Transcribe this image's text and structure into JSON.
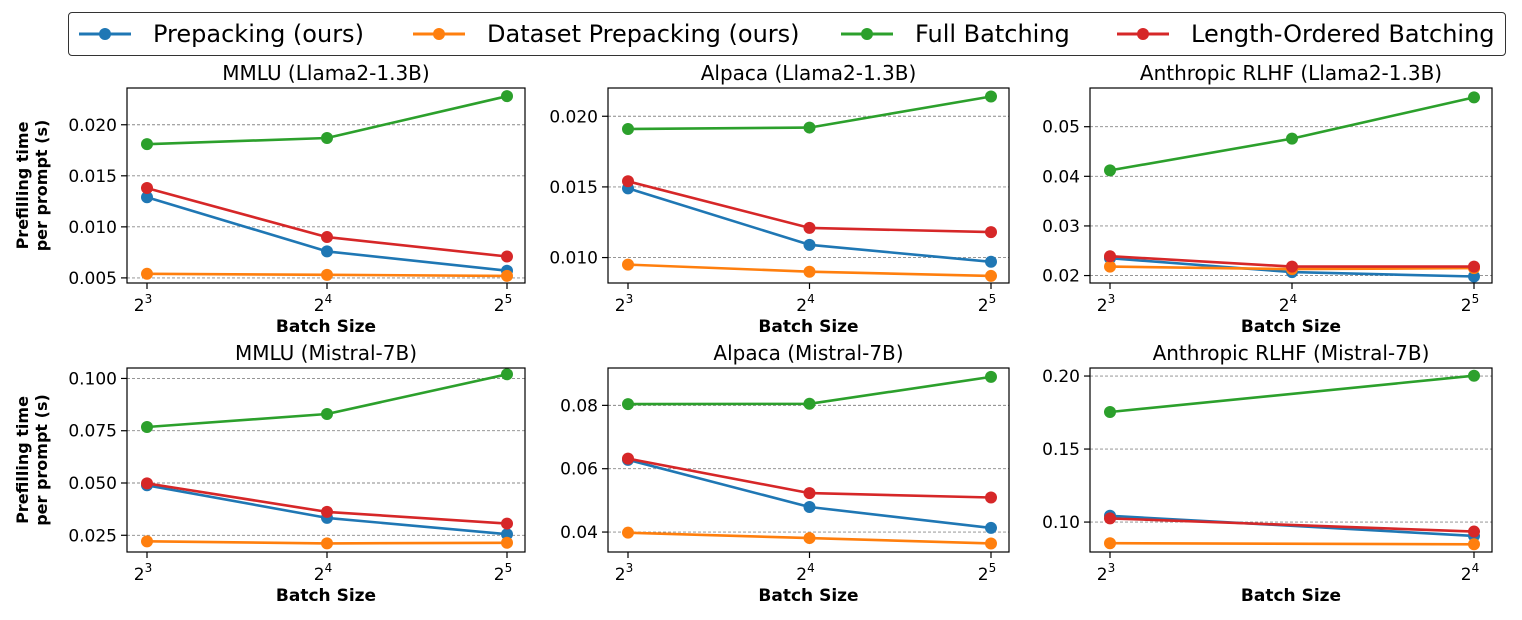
{
  "chart_data": {
    "type": "line",
    "legend": {
      "placement": "top",
      "entries": [
        {
          "label": "Prepacking (ours)",
          "color": "#1f77b4"
        },
        {
          "label": "Dataset Prepacking (ours)",
          "color": "#ff7f0e"
        },
        {
          "label": "Full Batching",
          "color": "#2ca02c"
        },
        {
          "label": "Length-Ordered Batching",
          "color": "#d62728"
        }
      ]
    },
    "ylabel_lines": [
      "Prefilling time",
      "per prompt (s)"
    ],
    "panels": [
      {
        "title": "MMLU (Llama2-1.3B)",
        "xlabel": "Batch Size",
        "x_exponents": [
          3,
          4,
          5
        ],
        "ylim": [
          0.0045,
          0.0236
        ],
        "yticks": [
          "0.005",
          "0.010",
          "0.015",
          "0.020"
        ],
        "ytick_values": [
          0.005,
          0.01,
          0.015,
          0.02
        ],
        "show_ylabel": true,
        "series": [
          {
            "name": "Prepacking (ours)",
            "values": [
              0.0129,
              0.0076,
              0.0057
            ]
          },
          {
            "name": "Dataset Prepacking (ours)",
            "values": [
              0.0054,
              0.0053,
              0.0052
            ]
          },
          {
            "name": "Full Batching",
            "values": [
              0.0181,
              0.0187,
              0.0228
            ]
          },
          {
            "name": "Length-Ordered Batching",
            "values": [
              0.0138,
              0.009,
              0.0071
            ]
          }
        ]
      },
      {
        "title": "Alpaca (Llama2-1.3B)",
        "xlabel": "Batch Size",
        "x_exponents": [
          3,
          4,
          5
        ],
        "ylim": [
          0.0082,
          0.022
        ],
        "yticks": [
          "0.010",
          "0.015",
          "0.020"
        ],
        "ytick_values": [
          0.01,
          0.015,
          0.02
        ],
        "show_ylabel": false,
        "series": [
          {
            "name": "Prepacking (ours)",
            "values": [
              0.0149,
              0.0109,
              0.0097
            ]
          },
          {
            "name": "Dataset Prepacking (ours)",
            "values": [
              0.0095,
              0.009,
              0.0087
            ]
          },
          {
            "name": "Full Batching",
            "values": [
              0.0191,
              0.0192,
              0.0214
            ]
          },
          {
            "name": "Length-Ordered Batching",
            "values": [
              0.0154,
              0.0121,
              0.0118
            ]
          }
        ]
      },
      {
        "title": "Anthropic RLHF (Llama2-1.3B)",
        "xlabel": "Batch Size",
        "x_exponents": [
          3,
          4,
          5
        ],
        "ylim": [
          0.0185,
          0.0578
        ],
        "yticks": [
          "0.02",
          "0.03",
          "0.04",
          "0.05"
        ],
        "ytick_values": [
          0.02,
          0.03,
          0.04,
          0.05
        ],
        "show_ylabel": false,
        "series": [
          {
            "name": "Prepacking (ours)",
            "values": [
              0.0235,
              0.0207,
              0.0198
            ]
          },
          {
            "name": "Dataset Prepacking (ours)",
            "values": [
              0.0218,
              0.0213,
              0.0215
            ]
          },
          {
            "name": "Full Batching",
            "values": [
              0.0412,
              0.0476,
              0.0559
            ]
          },
          {
            "name": "Length-Ordered Batching",
            "values": [
              0.0239,
              0.0218,
              0.0218
            ]
          }
        ]
      },
      {
        "title": "MMLU (Mistral-7B)",
        "xlabel": "Batch Size",
        "x_exponents": [
          3,
          4,
          5
        ],
        "ylim": [
          0.017,
          0.105
        ],
        "yticks": [
          "0.025",
          "0.050",
          "0.075",
          "0.100"
        ],
        "ytick_values": [
          0.025,
          0.05,
          0.075,
          0.1
        ],
        "show_ylabel": true,
        "series": [
          {
            "name": "Prepacking (ours)",
            "values": [
              0.0489,
              0.0333,
              0.0255
            ]
          },
          {
            "name": "Dataset Prepacking (ours)",
            "values": [
              0.0221,
              0.0211,
              0.0214
            ]
          },
          {
            "name": "Full Batching",
            "values": [
              0.0768,
              0.083,
              0.102
            ]
          },
          {
            "name": "Length-Ordered Batching",
            "values": [
              0.0498,
              0.0362,
              0.0306
            ]
          }
        ]
      },
      {
        "title": "Alpaca (Mistral-7B)",
        "xlabel": "Batch Size",
        "x_exponents": [
          3,
          4,
          5
        ],
        "ylim": [
          0.0337,
          0.0918
        ],
        "yticks": [
          "0.04",
          "0.06",
          "0.08"
        ],
        "ytick_values": [
          0.04,
          0.06,
          0.08
        ],
        "show_ylabel": false,
        "series": [
          {
            "name": "Prepacking (ours)",
            "values": [
              0.0628,
              0.0479,
              0.0413
            ]
          },
          {
            "name": "Dataset Prepacking (ours)",
            "values": [
              0.0398,
              0.0381,
              0.0364
            ]
          },
          {
            "name": "Full Batching",
            "values": [
              0.0804,
              0.0805,
              0.089
            ]
          },
          {
            "name": "Length-Ordered Batching",
            "values": [
              0.0632,
              0.0523,
              0.0509
            ]
          }
        ]
      },
      {
        "title": "Anthropic RLHF (Mistral-7B)",
        "xlabel": "Batch Size",
        "x_exponents": [
          3,
          4
        ],
        "ylim": [
          0.0795,
          0.2055
        ],
        "yticks": [
          "0.10",
          "0.15",
          "0.20"
        ],
        "ytick_values": [
          0.1,
          0.15,
          0.2
        ],
        "show_ylabel": false,
        "series": [
          {
            "name": "Prepacking (ours)",
            "values": [
              0.1043,
              0.0905
            ]
          },
          {
            "name": "Dataset Prepacking (ours)",
            "values": [
              0.0855,
              0.0848
            ]
          },
          {
            "name": "Full Batching",
            "values": [
              0.1754,
              0.2002
            ]
          },
          {
            "name": "Length-Ordered Batching",
            "values": [
              0.1025,
              0.0935
            ]
          }
        ]
      }
    ]
  }
}
